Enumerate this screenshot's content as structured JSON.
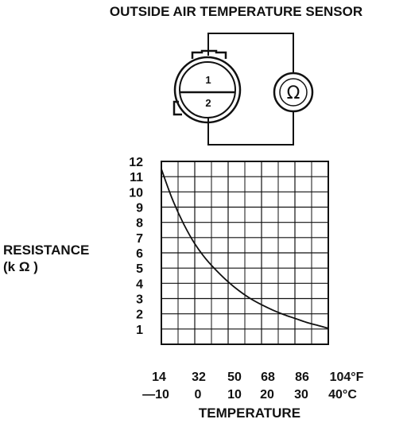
{
  "title": "OUTSIDE AIR TEMPERATURE SENSOR",
  "connector": {
    "pin1": "1",
    "pin2": "2"
  },
  "meter": {
    "symbol": "Ω"
  },
  "chart_data": {
    "type": "line",
    "ylabel_line1": "RESISTANCE",
    "ylabel_line2": "(k Ω )",
    "xlabel": "TEMPERATURE",
    "ylim": [
      0,
      12
    ],
    "xlim": [
      14,
      104
    ],
    "y_ticks": [
      "1",
      "2",
      "3",
      "4",
      "5",
      "6",
      "7",
      "8",
      "9",
      "10",
      "11",
      "12"
    ],
    "x_ticks_f": [
      "14",
      "32",
      "50",
      "68",
      "86",
      "104°F"
    ],
    "x_ticks_c": [
      "—10",
      "0",
      "10",
      "20",
      "30",
      "40°C"
    ],
    "grid": true,
    "series": [
      {
        "x": [
          14,
          20,
          26,
          32,
          38,
          44,
          50,
          56,
          62,
          68,
          74,
          80,
          86,
          92,
          98,
          104
        ],
        "y": [
          11.5,
          9.5,
          7.9,
          6.6,
          5.6,
          4.8,
          4.1,
          3.5,
          3.0,
          2.6,
          2.25,
          1.95,
          1.7,
          1.45,
          1.25,
          1.05
        ]
      }
    ]
  }
}
